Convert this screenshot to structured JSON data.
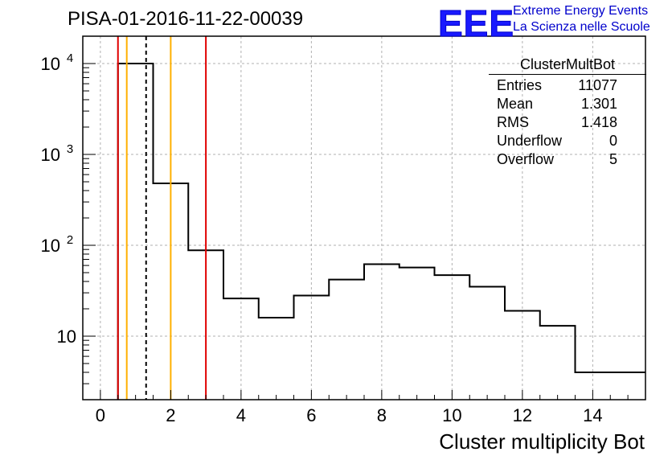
{
  "chart_title": "PISA-01-2016-11-22-00039",
  "logo": {
    "text": "EEE",
    "line1": "Extreme Energy Events",
    "line2": "La Scienza nelle Scuole",
    "color": "#1a1aff"
  },
  "stats_box": {
    "header": "ClusterMultBot",
    "rows": [
      {
        "label": "Entries",
        "value": "11077"
      },
      {
        "label": "Mean",
        "value": "1.301"
      },
      {
        "label": "RMS",
        "value": "1.418"
      },
      {
        "label": "Underflow",
        "value": "0"
      },
      {
        "label": "Overflow",
        "value": "5"
      }
    ]
  },
  "chart_data": {
    "type": "histogram",
    "title": "PISA-01-2016-11-22-00039",
    "xlabel": "Cluster multiplicity Bot",
    "ylabel": "",
    "x_range": [
      -0.5,
      15.5
    ],
    "y_scale": "log",
    "y_range": [
      2,
      20000
    ],
    "x_ticks": [
      "0",
      "2",
      "4",
      "6",
      "8",
      "10",
      "12",
      "14"
    ],
    "y_ticks": [
      {
        "value": 10,
        "label": "10"
      },
      {
        "value": 100,
        "label": "10",
        "exp": "2"
      },
      {
        "value": 1000,
        "label": "10",
        "exp": "3"
      },
      {
        "value": 10000,
        "label": "10",
        "exp": "4"
      }
    ],
    "grid": true,
    "bin_width": 1,
    "bins": [
      {
        "center": 1,
        "count": 10000
      },
      {
        "center": 2,
        "count": 480
      },
      {
        "center": 3,
        "count": 88
      },
      {
        "center": 4,
        "count": 26
      },
      {
        "center": 5,
        "count": 16
      },
      {
        "center": 6,
        "count": 28
      },
      {
        "center": 7,
        "count": 42
      },
      {
        "center": 8,
        "count": 62
      },
      {
        "center": 9,
        "count": 57
      },
      {
        "center": 10,
        "count": 47
      },
      {
        "center": 11,
        "count": 35
      },
      {
        "center": 12,
        "count": 19
      },
      {
        "center": 13,
        "count": 13
      },
      {
        "center": 14,
        "count": 4
      },
      {
        "center": 15,
        "count": 4
      }
    ],
    "vertical_lines": [
      {
        "x": 0.5,
        "color": "#e00000",
        "style": "solid"
      },
      {
        "x": 3,
        "color": "#e00000",
        "style": "solid"
      },
      {
        "x": 0.75,
        "color": "#ffb000",
        "style": "solid"
      },
      {
        "x": 2,
        "color": "#ffb000",
        "style": "solid"
      },
      {
        "x": 1.3,
        "color": "#000000",
        "style": "dashed"
      }
    ]
  }
}
